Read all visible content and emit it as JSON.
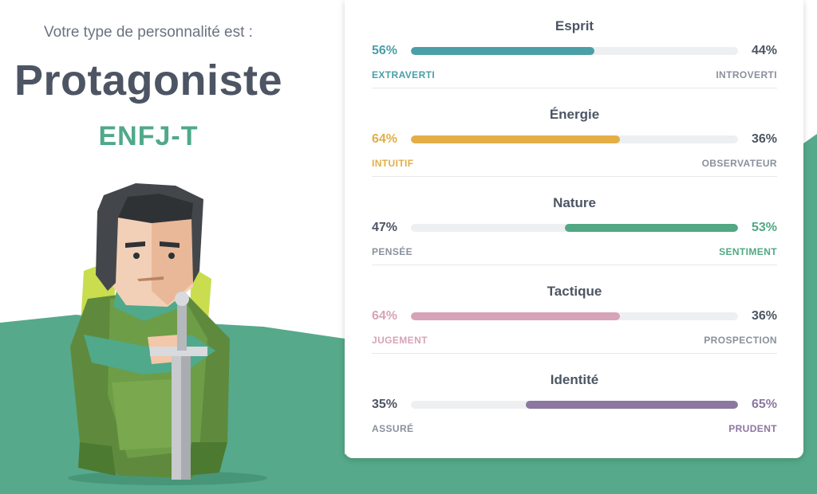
{
  "intro": "Votre type de personnalité est :",
  "type_name": "Protagoniste",
  "type_code": "ENFJ-T",
  "colors": {
    "accent_green": "#4fa98a",
    "heading": "#4d5564",
    "muted": "#8a919c",
    "track": "#eeeff1"
  },
  "traits": [
    {
      "title": "Esprit",
      "left_pct": "56%",
      "right_pct": "44%",
      "left_label": "EXTRAVERTI",
      "right_label": "INTROVERTI",
      "dominant": "left",
      "dominant_fraction": 0.56,
      "color": "#4a9fa8"
    },
    {
      "title": "Énergie",
      "left_pct": "64%",
      "right_pct": "36%",
      "left_label": "INTUITIF",
      "right_label": "OBSERVATEUR",
      "dominant": "left",
      "dominant_fraction": 0.64,
      "color": "#e4ae46"
    },
    {
      "title": "Nature",
      "left_pct": "47%",
      "right_pct": "53%",
      "left_label": "PENSÉE",
      "right_label": "SENTIMENT",
      "dominant": "right",
      "dominant_fraction": 0.53,
      "color": "#51a883"
    },
    {
      "title": "Tactique",
      "left_pct": "64%",
      "right_pct": "36%",
      "left_label": "JUGEMENT",
      "right_label": "PROSPECTION",
      "dominant": "left",
      "dominant_fraction": 0.64,
      "color": "#d7a3b8"
    },
    {
      "title": "Identité",
      "left_pct": "35%",
      "right_pct": "65%",
      "left_label": "ASSURÉ",
      "right_label": "PRUDENT",
      "dominant": "right",
      "dominant_fraction": 0.65,
      "color": "#8c77a1"
    }
  ]
}
